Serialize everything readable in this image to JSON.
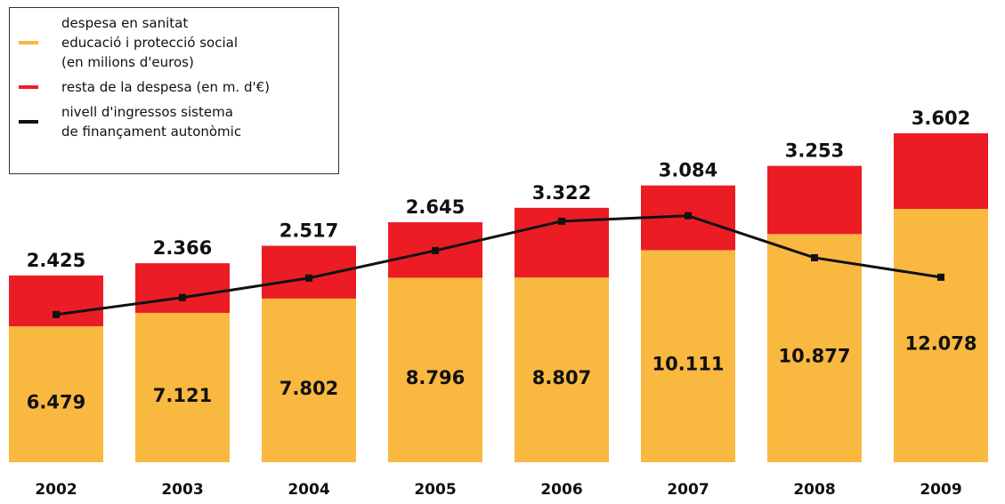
{
  "chart_data": {
    "type": "bar",
    "categories": [
      "2002",
      "2003",
      "2004",
      "2005",
      "2006",
      "2007",
      "2008",
      "2009"
    ],
    "series": [
      {
        "name": "despesa en sanitat\neducació i protecció social\n(en milions d'euros)",
        "color": "#f9b840",
        "values": [
          6479,
          7121,
          7802,
          8796,
          8807,
          10111,
          10877,
          12078
        ],
        "value_labels": [
          "6.479",
          "7.121",
          "7.802",
          "8.796",
          "8.807",
          "10.111",
          "10.877",
          "12.078"
        ]
      },
      {
        "name": "resta de la despesa (en m. d'€)",
        "color": "#ec1c24",
        "values": [
          2425,
          2366,
          2517,
          2645,
          3322,
          3084,
          3253,
          3602
        ],
        "value_labels": [
          "2.425",
          "2.366",
          "2.517",
          "2.645",
          "3.322",
          "3.084",
          "3.253",
          "3.602"
        ]
      },
      {
        "name": "nivell d'ingressos sistema\nde finançament autonòmic",
        "color": "#111111",
        "type": "line",
        "values": [
          7040,
          7850,
          8780,
          10090,
          11490,
          11750,
          9750,
          8820
        ]
      }
    ]
  }
}
